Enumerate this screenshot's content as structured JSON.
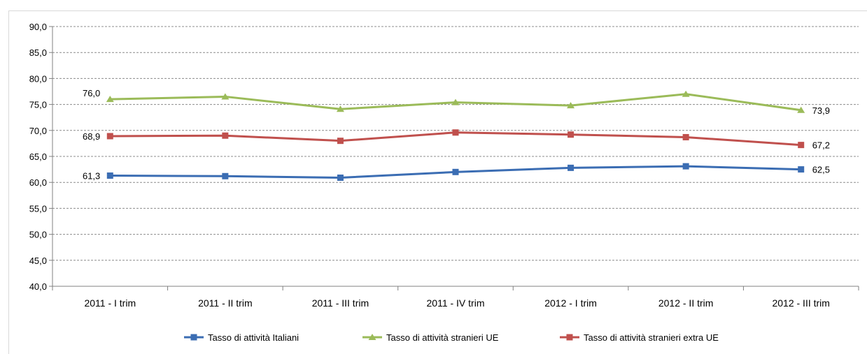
{
  "chart_data": {
    "type": "line",
    "title": "",
    "xlabel": "",
    "ylabel": "",
    "ylim": [
      40,
      90
    ],
    "y_ticks": [
      "40,0",
      "45,0",
      "50,0",
      "55,0",
      "60,0",
      "65,0",
      "70,0",
      "75,0",
      "80,0",
      "85,0",
      "90,0"
    ],
    "categories": [
      "2011 - I trim",
      "2011 - II trim",
      "2011 - III trim",
      "2011 - IV trim",
      "2012 - I trim",
      "2012 - II trim",
      "2012 - III trim"
    ],
    "grid": true,
    "legend_position": "bottom",
    "series": [
      {
        "name": "Tasso di attività Italiani",
        "color": "#3b6db3",
        "marker": "square",
        "values": [
          61.3,
          61.2,
          60.9,
          62.0,
          62.8,
          63.1,
          62.5
        ],
        "labels": {
          "first": "61,3",
          "last": "62,5"
        }
      },
      {
        "name": "Tasso di attività stranieri UE",
        "color": "#9bbb59",
        "marker": "triangle",
        "values": [
          76.0,
          76.5,
          74.1,
          75.4,
          74.8,
          77.0,
          73.9
        ],
        "labels": {
          "first": "76,0",
          "last": "73,9"
        }
      },
      {
        "name": "Tasso di attività stranieri extra UE",
        "color": "#c0504d",
        "marker": "square",
        "values": [
          68.9,
          69.0,
          68.0,
          69.6,
          69.2,
          68.7,
          67.2
        ],
        "labels": {
          "first": "68,9",
          "last": "67,2"
        }
      }
    ]
  }
}
